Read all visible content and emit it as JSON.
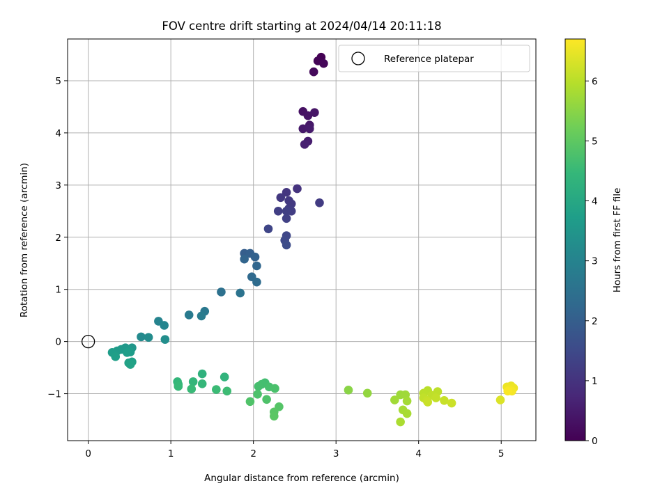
{
  "chart_data": {
    "type": "scatter",
    "title": "FOV centre drift starting at 2024/04/14 20:11:18",
    "xlabel": "Angular distance from reference (arcmin)",
    "ylabel": "Rotation from reference (arcmin)",
    "xlim": [
      -0.25,
      5.42
    ],
    "ylim": [
      -1.9,
      5.8
    ],
    "xticks": [
      0,
      1,
      2,
      3,
      4,
      5
    ],
    "yticks": [
      -1,
      0,
      1,
      2,
      3,
      4,
      5
    ],
    "grid": true,
    "legend": {
      "placement": "top-right",
      "entries": [
        "Reference platepar"
      ]
    },
    "reference_point": {
      "x": 0,
      "y": 0,
      "marker": "open-circle",
      "name": "Reference platepar"
    },
    "colorbar": {
      "label": "Hours from first FF file",
      "range": [
        0,
        6.7
      ],
      "ticks": [
        0,
        1,
        2,
        3,
        4,
        5,
        6
      ],
      "colormap": "viridis"
    },
    "colors": [
      "#440154",
      "#482878",
      "#3e4989",
      "#31688e",
      "#26828e",
      "#1f9e89",
      "#35b779",
      "#6ece58",
      "#b5de2b",
      "#fde725"
    ],
    "points": [
      {
        "x": 2.82,
        "y": 5.45,
        "t": 0.0
      },
      {
        "x": 2.78,
        "y": 5.38,
        "t": 0.05
      },
      {
        "x": 2.85,
        "y": 5.33,
        "t": 0.1
      },
      {
        "x": 2.73,
        "y": 5.17,
        "t": 0.15
      },
      {
        "x": 2.6,
        "y": 4.41,
        "t": 0.3
      },
      {
        "x": 2.66,
        "y": 4.33,
        "t": 0.35
      },
      {
        "x": 2.74,
        "y": 4.39,
        "t": 0.38
      },
      {
        "x": 2.68,
        "y": 4.15,
        "t": 0.42
      },
      {
        "x": 2.6,
        "y": 4.08,
        "t": 0.46
      },
      {
        "x": 2.68,
        "y": 4.08,
        "t": 0.5
      },
      {
        "x": 2.66,
        "y": 3.84,
        "t": 0.55
      },
      {
        "x": 2.62,
        "y": 3.78,
        "t": 0.6
      },
      {
        "x": 2.53,
        "y": 2.93,
        "t": 1.0
      },
      {
        "x": 2.4,
        "y": 2.86,
        "t": 1.05
      },
      {
        "x": 2.33,
        "y": 2.76,
        "t": 1.1
      },
      {
        "x": 2.43,
        "y": 2.7,
        "t": 1.12
      },
      {
        "x": 2.46,
        "y": 2.64,
        "t": 1.15
      },
      {
        "x": 2.8,
        "y": 2.66,
        "t": 1.18
      },
      {
        "x": 2.43,
        "y": 2.55,
        "t": 1.2
      },
      {
        "x": 2.46,
        "y": 2.5,
        "t": 1.22
      },
      {
        "x": 2.3,
        "y": 2.5,
        "t": 1.25
      },
      {
        "x": 2.4,
        "y": 2.5,
        "t": 1.28
      },
      {
        "x": 2.4,
        "y": 2.36,
        "t": 1.3
      },
      {
        "x": 2.18,
        "y": 2.16,
        "t": 1.4
      },
      {
        "x": 2.4,
        "y": 2.03,
        "t": 1.45
      },
      {
        "x": 2.38,
        "y": 1.94,
        "t": 1.5
      },
      {
        "x": 2.4,
        "y": 1.85,
        "t": 1.55
      },
      {
        "x": 1.89,
        "y": 1.69,
        "t": 2.0
      },
      {
        "x": 1.96,
        "y": 1.69,
        "t": 2.05
      },
      {
        "x": 2.02,
        "y": 1.62,
        "t": 2.1
      },
      {
        "x": 1.89,
        "y": 1.58,
        "t": 2.15
      },
      {
        "x": 2.04,
        "y": 1.45,
        "t": 2.2
      },
      {
        "x": 1.98,
        "y": 1.24,
        "t": 2.3
      },
      {
        "x": 2.04,
        "y": 1.14,
        "t": 2.35
      },
      {
        "x": 1.61,
        "y": 0.95,
        "t": 2.5
      },
      {
        "x": 1.84,
        "y": 0.93,
        "t": 2.55
      },
      {
        "x": 1.41,
        "y": 0.58,
        "t": 2.7
      },
      {
        "x": 1.22,
        "y": 0.51,
        "t": 2.75
      },
      {
        "x": 1.37,
        "y": 0.49,
        "t": 2.8
      },
      {
        "x": 0.85,
        "y": 0.39,
        "t": 3.0
      },
      {
        "x": 0.92,
        "y": 0.31,
        "t": 3.05
      },
      {
        "x": 0.64,
        "y": 0.09,
        "t": 3.2
      },
      {
        "x": 0.73,
        "y": 0.08,
        "t": 3.25
      },
      {
        "x": 0.93,
        "y": 0.04,
        "t": 3.3
      },
      {
        "x": 0.53,
        "y": -0.12,
        "t": 3.5
      },
      {
        "x": 0.45,
        "y": -0.12,
        "t": 3.55
      },
      {
        "x": 0.4,
        "y": -0.15,
        "t": 3.6
      },
      {
        "x": 0.49,
        "y": -0.17,
        "t": 3.62
      },
      {
        "x": 0.35,
        "y": -0.18,
        "t": 3.65
      },
      {
        "x": 0.51,
        "y": -0.2,
        "t": 3.68
      },
      {
        "x": 0.29,
        "y": -0.21,
        "t": 3.7
      },
      {
        "x": 0.47,
        "y": -0.21,
        "t": 3.72
      },
      {
        "x": 0.33,
        "y": -0.29,
        "t": 3.75
      },
      {
        "x": 0.53,
        "y": -0.39,
        "t": 3.8
      },
      {
        "x": 0.49,
        "y": -0.41,
        "t": 3.82
      },
      {
        "x": 0.51,
        "y": -0.44,
        "t": 3.85
      },
      {
        "x": 1.38,
        "y": -0.62,
        "t": 4.3
      },
      {
        "x": 1.65,
        "y": -0.68,
        "t": 4.35
      },
      {
        "x": 1.08,
        "y": -0.77,
        "t": 4.4
      },
      {
        "x": 1.27,
        "y": -0.77,
        "t": 4.42
      },
      {
        "x": 1.38,
        "y": -0.81,
        "t": 4.45
      },
      {
        "x": 1.09,
        "y": -0.82,
        "t": 4.47
      },
      {
        "x": 1.09,
        "y": -0.86,
        "t": 4.5
      },
      {
        "x": 1.25,
        "y": -0.91,
        "t": 4.52
      },
      {
        "x": 1.55,
        "y": -0.92,
        "t": 4.55
      },
      {
        "x": 1.68,
        "y": -0.95,
        "t": 4.58
      },
      {
        "x": 2.14,
        "y": -0.79,
        "t": 4.65
      },
      {
        "x": 2.1,
        "y": -0.82,
        "t": 4.68
      },
      {
        "x": 2.06,
        "y": -0.86,
        "t": 4.7
      },
      {
        "x": 2.19,
        "y": -0.87,
        "t": 4.72
      },
      {
        "x": 2.26,
        "y": -0.9,
        "t": 4.75
      },
      {
        "x": 2.05,
        "y": -1.01,
        "t": 4.78
      },
      {
        "x": 2.16,
        "y": -1.11,
        "t": 4.8
      },
      {
        "x": 1.96,
        "y": -1.15,
        "t": 4.82
      },
      {
        "x": 2.31,
        "y": -1.25,
        "t": 4.88
      },
      {
        "x": 2.25,
        "y": -1.35,
        "t": 4.92
      },
      {
        "x": 2.25,
        "y": -1.43,
        "t": 4.95
      },
      {
        "x": 3.15,
        "y": -0.93,
        "t": 5.5
      },
      {
        "x": 3.38,
        "y": -0.99,
        "t": 5.6
      },
      {
        "x": 3.78,
        "y": -1.02,
        "t": 5.7
      },
      {
        "x": 3.84,
        "y": -1.02,
        "t": 5.72
      },
      {
        "x": 3.71,
        "y": -1.12,
        "t": 5.75
      },
      {
        "x": 3.86,
        "y": -1.14,
        "t": 5.78
      },
      {
        "x": 3.81,
        "y": -1.31,
        "t": 5.8
      },
      {
        "x": 3.86,
        "y": -1.38,
        "t": 5.82
      },
      {
        "x": 3.78,
        "y": -1.54,
        "t": 5.85
      },
      {
        "x": 4.11,
        "y": -0.94,
        "t": 6.0
      },
      {
        "x": 4.06,
        "y": -0.99,
        "t": 6.02
      },
      {
        "x": 4.23,
        "y": -0.96,
        "t": 6.04
      },
      {
        "x": 4.16,
        "y": -1.03,
        "t": 6.06
      },
      {
        "x": 4.06,
        "y": -1.08,
        "t": 6.08
      },
      {
        "x": 4.21,
        "y": -1.08,
        "t": 6.1
      },
      {
        "x": 4.1,
        "y": -1.13,
        "t": 6.12
      },
      {
        "x": 4.31,
        "y": -1.13,
        "t": 6.14
      },
      {
        "x": 4.11,
        "y": -1.16,
        "t": 6.16
      },
      {
        "x": 4.4,
        "y": -1.18,
        "t": 6.18
      },
      {
        "x": 4.99,
        "y": -1.12,
        "t": 6.35
      },
      {
        "x": 5.12,
        "y": -0.85,
        "t": 6.5
      },
      {
        "x": 5.07,
        "y": -0.87,
        "t": 6.52
      },
      {
        "x": 5.15,
        "y": -0.89,
        "t": 6.55
      },
      {
        "x": 5.1,
        "y": -0.92,
        "t": 6.58
      },
      {
        "x": 5.13,
        "y": -0.95,
        "t": 6.62
      },
      {
        "x": 5.08,
        "y": -0.95,
        "t": 6.66
      }
    ]
  }
}
